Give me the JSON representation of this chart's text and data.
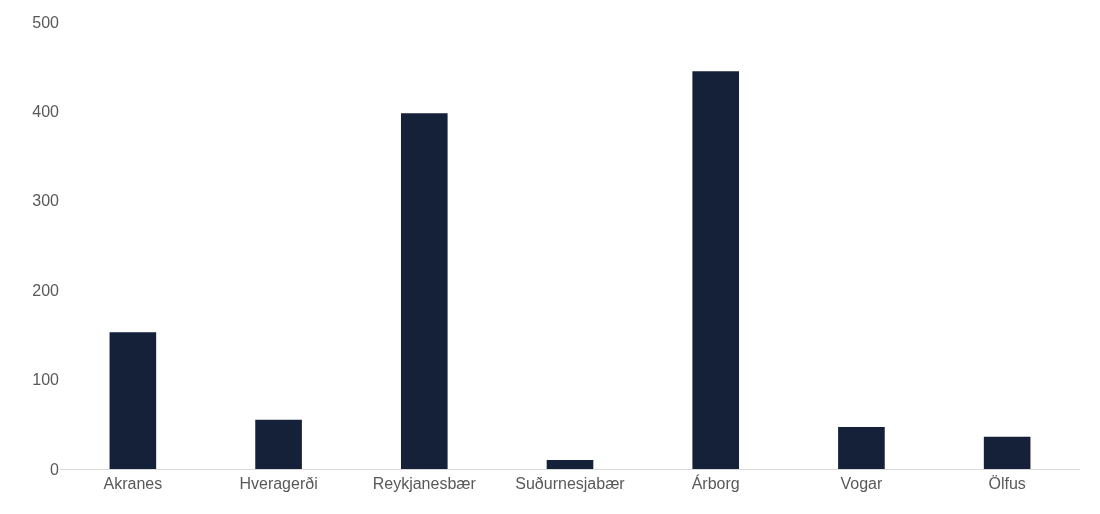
{
  "chart_data": {
    "type": "bar",
    "categories": [
      "Akranes",
      "Hveragerði",
      "Reykjanesbær",
      "Suðurnesjabær",
      "Árborg",
      "Vogar",
      "Ölfus"
    ],
    "values": [
      153,
      55,
      398,
      10,
      445,
      47,
      36
    ],
    "color": "#152039",
    "ylim": [
      0,
      500
    ],
    "yticks": [
      0,
      100,
      200,
      300,
      400,
      500
    ],
    "grid": false
  }
}
